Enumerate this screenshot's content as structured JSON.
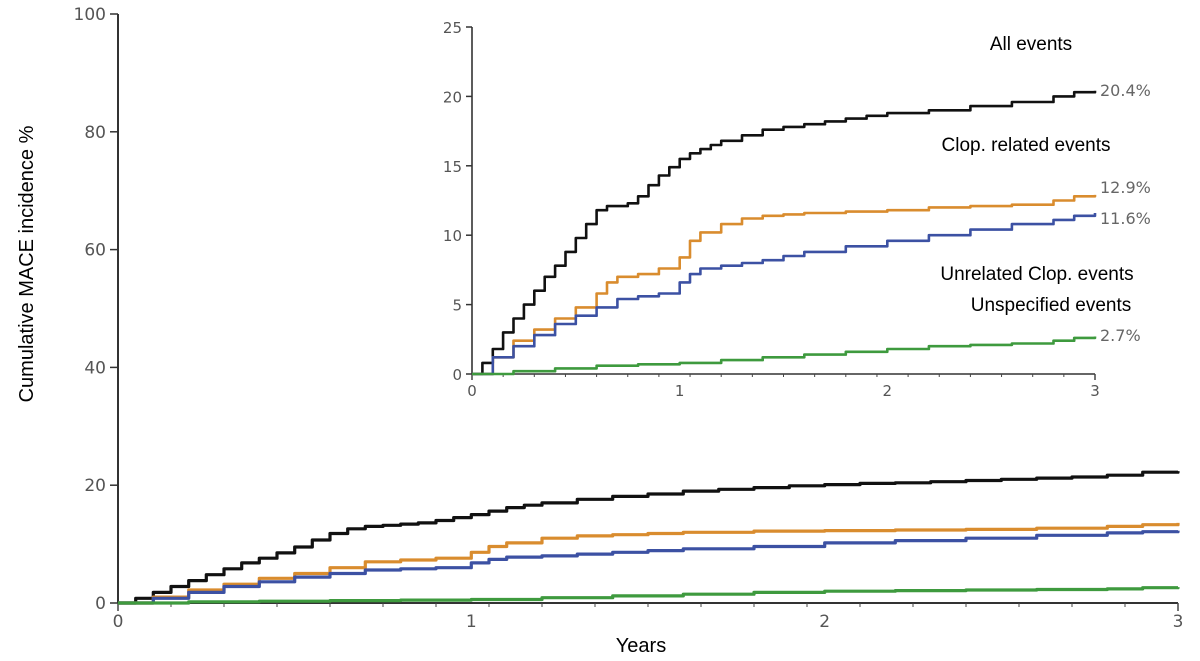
{
  "chart_data": [
    {
      "type": "line",
      "title": "",
      "xlabel": "Years",
      "ylabel": "Cumulative MACE incidence %",
      "xlim": [
        0,
        3
      ],
      "ylim": [
        0,
        100
      ],
      "xticks": [
        "0",
        "1",
        "2",
        "3"
      ],
      "yticks": [
        "0",
        "20",
        "40",
        "60",
        "80",
        "100"
      ],
      "grid": false,
      "colors": {
        "all": "#111111",
        "related": "#d98c2e",
        "unrelated": "#3c51a3",
        "unspecified": "#3e9a3e"
      },
      "series": [
        {
          "key": "all",
          "x": [
            0,
            0.05,
            0.1,
            0.15,
            0.2,
            0.25,
            0.3,
            0.35,
            0.4,
            0.45,
            0.5,
            0.55,
            0.6,
            0.65,
            0.7,
            0.75,
            0.8,
            0.85,
            0.9,
            0.95,
            1.0,
            1.05,
            1.1,
            1.15,
            1.2,
            1.3,
            1.4,
            1.5,
            1.6,
            1.7,
            1.8,
            1.9,
            2.0,
            2.1,
            2.2,
            2.3,
            2.4,
            2.5,
            2.6,
            2.7,
            2.8,
            2.9,
            3.0
          ],
          "values": [
            0,
            0.8,
            1.8,
            2.8,
            3.8,
            4.8,
            5.8,
            6.8,
            7.6,
            8.5,
            9.5,
            10.7,
            11.8,
            12.6,
            13.0,
            13.2,
            13.4,
            13.6,
            14.0,
            14.5,
            15.0,
            15.6,
            16.2,
            16.6,
            17.0,
            17.6,
            18.1,
            18.5,
            19.0,
            19.3,
            19.6,
            19.9,
            20.1,
            20.3,
            20.4,
            20.6,
            20.8,
            21.0,
            21.2,
            21.4,
            21.7,
            22.2,
            22.4
          ]
        },
        {
          "key": "related",
          "x": [
            0,
            0.1,
            0.2,
            0.3,
            0.4,
            0.5,
            0.6,
            0.7,
            0.8,
            0.9,
            1.0,
            1.05,
            1.1,
            1.2,
            1.3,
            1.4,
            1.5,
            1.6,
            1.8,
            2.0,
            2.2,
            2.4,
            2.6,
            2.8,
            2.9,
            3.0
          ],
          "values": [
            0,
            1.0,
            2.2,
            3.2,
            4.2,
            5.0,
            6.0,
            7.0,
            7.3,
            7.6,
            8.6,
            9.6,
            10.2,
            11.0,
            11.4,
            11.6,
            11.8,
            12.0,
            12.2,
            12.3,
            12.4,
            12.5,
            12.7,
            13.0,
            13.3,
            13.6
          ]
        },
        {
          "key": "unrelated",
          "x": [
            0,
            0.1,
            0.2,
            0.3,
            0.4,
            0.5,
            0.6,
            0.7,
            0.8,
            0.9,
            1.0,
            1.05,
            1.1,
            1.2,
            1.3,
            1.4,
            1.5,
            1.6,
            1.8,
            2.0,
            2.2,
            2.4,
            2.6,
            2.8,
            2.9,
            3.0
          ],
          "values": [
            0,
            0.8,
            1.8,
            2.8,
            3.6,
            4.4,
            5.0,
            5.6,
            5.8,
            6.0,
            6.8,
            7.4,
            7.8,
            8.0,
            8.3,
            8.6,
            8.9,
            9.2,
            9.6,
            10.2,
            10.6,
            11.0,
            11.5,
            11.9,
            12.1,
            12.3
          ]
        },
        {
          "key": "unspecified",
          "x": [
            0,
            0.2,
            0.4,
            0.6,
            0.8,
            1.0,
            1.2,
            1.4,
            1.6,
            1.8,
            2.0,
            2.2,
            2.4,
            2.6,
            2.8,
            2.9,
            3.0
          ],
          "values": [
            0,
            0.2,
            0.3,
            0.4,
            0.5,
            0.6,
            0.9,
            1.2,
            1.5,
            1.8,
            2.0,
            2.1,
            2.2,
            2.3,
            2.4,
            2.6,
            2.7
          ]
        }
      ]
    },
    {
      "type": "line",
      "title": "",
      "xlabel": "",
      "ylabel": "",
      "xlim": [
        0,
        3
      ],
      "ylim": [
        0,
        25
      ],
      "xticks": [
        "0",
        "1",
        "2",
        "3"
      ],
      "yticks": [
        "0",
        "5",
        "10",
        "15",
        "20",
        "25"
      ],
      "grid": false,
      "legend_position": "right",
      "annotations": {
        "all": "All events",
        "related": "Clop. related events",
        "unrelated": "Unrelated Clop. events",
        "unspecified": "Unspecified events"
      },
      "end_labels": {
        "all": "20.4%",
        "related": "12.9%",
        "unrelated": "11.6%",
        "unspecified": "2.7%"
      },
      "series": [
        {
          "key": "all",
          "x": [
            0,
            0.05,
            0.1,
            0.15,
            0.2,
            0.25,
            0.3,
            0.35,
            0.4,
            0.45,
            0.5,
            0.55,
            0.6,
            0.65,
            0.7,
            0.75,
            0.8,
            0.85,
            0.9,
            0.95,
            1.0,
            1.05,
            1.1,
            1.15,
            1.2,
            1.3,
            1.4,
            1.5,
            1.6,
            1.7,
            1.8,
            1.9,
            2.0,
            2.2,
            2.4,
            2.6,
            2.8,
            2.9,
            3.0
          ],
          "values": [
            0,
            0.8,
            1.8,
            3.0,
            4.0,
            5.0,
            6.0,
            7.0,
            7.8,
            8.8,
            9.8,
            10.8,
            11.8,
            12.1,
            12.1,
            12.3,
            12.8,
            13.6,
            14.3,
            14.9,
            15.5,
            15.9,
            16.2,
            16.5,
            16.8,
            17.2,
            17.6,
            17.8,
            18.0,
            18.2,
            18.4,
            18.6,
            18.8,
            19.0,
            19.3,
            19.6,
            20.0,
            20.3,
            20.4
          ]
        },
        {
          "key": "related",
          "x": [
            0,
            0.1,
            0.2,
            0.3,
            0.4,
            0.5,
            0.6,
            0.65,
            0.7,
            0.8,
            0.9,
            1.0,
            1.05,
            1.1,
            1.2,
            1.3,
            1.4,
            1.5,
            1.6,
            1.8,
            2.0,
            2.2,
            2.4,
            2.6,
            2.8,
            2.9,
            3.0
          ],
          "values": [
            0,
            1.2,
            2.4,
            3.2,
            4.0,
            4.8,
            5.8,
            6.6,
            7.0,
            7.2,
            7.6,
            8.4,
            9.6,
            10.2,
            10.8,
            11.2,
            11.4,
            11.5,
            11.6,
            11.7,
            11.8,
            12.0,
            12.1,
            12.2,
            12.5,
            12.8,
            12.9
          ]
        },
        {
          "key": "unrelated",
          "x": [
            0,
            0.1,
            0.2,
            0.3,
            0.4,
            0.5,
            0.6,
            0.7,
            0.8,
            0.9,
            1.0,
            1.05,
            1.1,
            1.2,
            1.3,
            1.4,
            1.5,
            1.6,
            1.8,
            2.0,
            2.2,
            2.4,
            2.6,
            2.8,
            2.9,
            3.0
          ],
          "values": [
            0,
            1.2,
            2.0,
            2.8,
            3.6,
            4.2,
            4.8,
            5.4,
            5.6,
            5.8,
            6.6,
            7.2,
            7.6,
            7.8,
            8.0,
            8.2,
            8.5,
            8.8,
            9.2,
            9.6,
            10.0,
            10.4,
            10.8,
            11.1,
            11.4,
            11.6
          ]
        },
        {
          "key": "unspecified",
          "x": [
            0,
            0.2,
            0.4,
            0.6,
            0.8,
            1.0,
            1.2,
            1.4,
            1.6,
            1.8,
            2.0,
            2.2,
            2.4,
            2.6,
            2.8,
            2.9,
            3.0
          ],
          "values": [
            0,
            0.2,
            0.4,
            0.6,
            0.7,
            0.8,
            1.0,
            1.2,
            1.4,
            1.6,
            1.8,
            2.0,
            2.1,
            2.2,
            2.4,
            2.6,
            2.7
          ]
        }
      ]
    }
  ]
}
